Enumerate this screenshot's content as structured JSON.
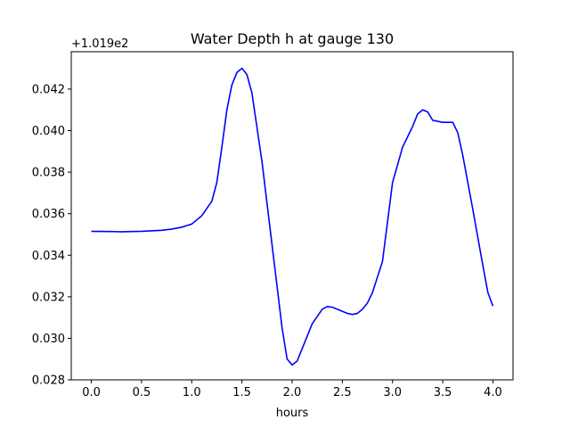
{
  "chart_data": {
    "type": "line",
    "title": "Water Depth h at gauge 130",
    "xlabel": "hours",
    "ylabel": "",
    "offset_label": "+1.019e2",
    "xlim": [
      -0.2,
      4.2
    ],
    "ylim": [
      0.028,
      0.0438
    ],
    "xticks": [
      0.0,
      0.5,
      1.0,
      1.5,
      2.0,
      2.5,
      3.0,
      3.5,
      4.0
    ],
    "xtick_labels": [
      "0.0",
      "0.5",
      "1.0",
      "1.5",
      "2.0",
      "2.5",
      "3.0",
      "3.5",
      "4.0"
    ],
    "yticks": [
      0.028,
      0.03,
      0.032,
      0.034,
      0.036,
      0.038,
      0.04,
      0.042
    ],
    "ytick_labels": [
      "0.028",
      "0.030",
      "0.032",
      "0.034",
      "0.036",
      "0.038",
      "0.040",
      "0.042"
    ],
    "grid": false,
    "series": [
      {
        "color": "#0000ff",
        "x": [
          0.0,
          0.2,
          0.3,
          0.5,
          0.7,
          0.8,
          0.9,
          1.0,
          1.1,
          1.2,
          1.25,
          1.3,
          1.35,
          1.4,
          1.45,
          1.5,
          1.55,
          1.6,
          1.7,
          1.8,
          1.9,
          1.95,
          2.0,
          2.05,
          2.1,
          2.2,
          2.3,
          2.35,
          2.4,
          2.5,
          2.55,
          2.6,
          2.65,
          2.7,
          2.75,
          2.8,
          2.9,
          3.0,
          3.1,
          3.2,
          3.25,
          3.3,
          3.35,
          3.4,
          3.5,
          3.6,
          3.65,
          3.7,
          3.8,
          3.9,
          3.95,
          4.0
        ],
        "values": [
          0.03515,
          0.03514,
          0.03513,
          0.03515,
          0.0352,
          0.03526,
          0.03535,
          0.0355,
          0.0359,
          0.0366,
          0.0375,
          0.0392,
          0.041,
          0.0422,
          0.0428,
          0.043,
          0.0427,
          0.0418,
          0.0385,
          0.0345,
          0.0305,
          0.029,
          0.02872,
          0.0289,
          0.0295,
          0.0307,
          0.0314,
          0.03153,
          0.0315,
          0.0313,
          0.0312,
          0.03115,
          0.0312,
          0.0314,
          0.0317,
          0.0322,
          0.0337,
          0.0375,
          0.0392,
          0.0402,
          0.0408,
          0.041,
          0.0409,
          0.0405,
          0.0404,
          0.0404,
          0.0399,
          0.0388,
          0.0362,
          0.0335,
          0.0322,
          0.03155
        ]
      }
    ]
  }
}
